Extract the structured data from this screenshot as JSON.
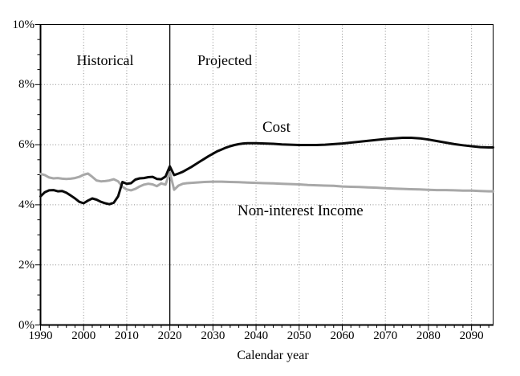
{
  "chart_data": {
    "type": "line",
    "title": "",
    "xlabel": "Calendar year",
    "ylabel": "",
    "x_range": [
      1990,
      2095
    ],
    "y_range": [
      0,
      10
    ],
    "grid": {
      "style": "dotted",
      "color": "#8f8f8f",
      "horizontal_values": [
        2,
        4,
        6,
        8
      ],
      "vertical_values": [
        2000,
        2010,
        2030,
        2040,
        2050,
        2060,
        2070,
        2080,
        2090
      ]
    },
    "divider": {
      "x": 2020,
      "color": "#000000"
    },
    "x_ticks": {
      "values": [
        1990,
        2000,
        2010,
        2020,
        2030,
        2040,
        2050,
        2060,
        2070,
        2080,
        2090
      ],
      "labels": [
        "1990",
        "2000",
        "2010",
        "2020",
        "2030",
        "2040",
        "2050",
        "2060",
        "2070",
        "2080",
        "2090"
      ],
      "minor_step": 2
    },
    "y_ticks": {
      "values": [
        0,
        2,
        4,
        6,
        8,
        10
      ],
      "labels": [
        "0%",
        "2%",
        "4%",
        "6%",
        "8%",
        "10%"
      ],
      "minor_step": 0.5
    },
    "annotations": {
      "historical": "Historical",
      "projected": "Projected",
      "cost": "Cost",
      "income": "Non-interest Income"
    },
    "series": [
      {
        "name": "Non-interest Income",
        "color": "#a8a8a8",
        "width": 3,
        "points": [
          [
            1990,
            5.03
          ],
          [
            1991,
            4.99
          ],
          [
            1992,
            4.91
          ],
          [
            1993,
            4.88
          ],
          [
            1994,
            4.89
          ],
          [
            1995,
            4.87
          ],
          [
            1996,
            4.86
          ],
          [
            1997,
            4.87
          ],
          [
            1998,
            4.89
          ],
          [
            1999,
            4.93
          ],
          [
            2000,
            5.0
          ],
          [
            2001,
            5.04
          ],
          [
            2002,
            4.93
          ],
          [
            2003,
            4.81
          ],
          [
            2004,
            4.78
          ],
          [
            2005,
            4.79
          ],
          [
            2006,
            4.81
          ],
          [
            2007,
            4.85
          ],
          [
            2008,
            4.78
          ],
          [
            2009,
            4.6
          ],
          [
            2010,
            4.51
          ],
          [
            2011,
            4.48
          ],
          [
            2012,
            4.53
          ],
          [
            2013,
            4.61
          ],
          [
            2014,
            4.67
          ],
          [
            2015,
            4.7
          ],
          [
            2016,
            4.68
          ],
          [
            2017,
            4.62
          ],
          [
            2018,
            4.71
          ],
          [
            2019,
            4.67
          ],
          [
            2020,
            5.08
          ],
          [
            2021,
            4.5
          ],
          [
            2022,
            4.64
          ],
          [
            2023,
            4.7
          ],
          [
            2024,
            4.72
          ],
          [
            2026,
            4.74
          ],
          [
            2028,
            4.76
          ],
          [
            2030,
            4.77
          ],
          [
            2032,
            4.77
          ],
          [
            2034,
            4.76
          ],
          [
            2036,
            4.75
          ],
          [
            2038,
            4.74
          ],
          [
            2040,
            4.73
          ],
          [
            2042,
            4.72
          ],
          [
            2044,
            4.71
          ],
          [
            2046,
            4.7
          ],
          [
            2048,
            4.69
          ],
          [
            2050,
            4.68
          ],
          [
            2052,
            4.66
          ],
          [
            2054,
            4.65
          ],
          [
            2056,
            4.64
          ],
          [
            2058,
            4.63
          ],
          [
            2060,
            4.61
          ],
          [
            2062,
            4.6
          ],
          [
            2064,
            4.59
          ],
          [
            2066,
            4.58
          ],
          [
            2068,
            4.57
          ],
          [
            2070,
            4.55
          ],
          [
            2072,
            4.54
          ],
          [
            2074,
            4.53
          ],
          [
            2076,
            4.52
          ],
          [
            2078,
            4.51
          ],
          [
            2080,
            4.5
          ],
          [
            2082,
            4.49
          ],
          [
            2084,
            4.49
          ],
          [
            2086,
            4.48
          ],
          [
            2088,
            4.47
          ],
          [
            2090,
            4.47
          ],
          [
            2092,
            4.46
          ],
          [
            2094,
            4.45
          ],
          [
            2095,
            4.45
          ]
        ]
      },
      {
        "name": "Cost",
        "color": "#0a0a0a",
        "width": 3,
        "points": [
          [
            1990,
            4.28
          ],
          [
            1991,
            4.42
          ],
          [
            1992,
            4.48
          ],
          [
            1993,
            4.49
          ],
          [
            1994,
            4.45
          ],
          [
            1995,
            4.46
          ],
          [
            1996,
            4.4
          ],
          [
            1997,
            4.31
          ],
          [
            1998,
            4.21
          ],
          [
            1999,
            4.1
          ],
          [
            2000,
            4.05
          ],
          [
            2001,
            4.14
          ],
          [
            2002,
            4.21
          ],
          [
            2003,
            4.17
          ],
          [
            2004,
            4.1
          ],
          [
            2005,
            4.05
          ],
          [
            2006,
            4.02
          ],
          [
            2007,
            4.07
          ],
          [
            2008,
            4.28
          ],
          [
            2009,
            4.76
          ],
          [
            2010,
            4.7
          ],
          [
            2011,
            4.72
          ],
          [
            2012,
            4.84
          ],
          [
            2013,
            4.88
          ],
          [
            2014,
            4.89
          ],
          [
            2015,
            4.92
          ],
          [
            2016,
            4.93
          ],
          [
            2017,
            4.86
          ],
          [
            2018,
            4.85
          ],
          [
            2019,
            4.94
          ],
          [
            2020,
            5.28
          ],
          [
            2021,
            4.99
          ],
          [
            2022,
            5.04
          ],
          [
            2023,
            5.1
          ],
          [
            2024,
            5.18
          ],
          [
            2025,
            5.26
          ],
          [
            2026,
            5.35
          ],
          [
            2027,
            5.44
          ],
          [
            2028,
            5.53
          ],
          [
            2029,
            5.62
          ],
          [
            2030,
            5.7
          ],
          [
            2031,
            5.78
          ],
          [
            2032,
            5.84
          ],
          [
            2033,
            5.9
          ],
          [
            2034,
            5.95
          ],
          [
            2035,
            5.99
          ],
          [
            2036,
            6.02
          ],
          [
            2037,
            6.04
          ],
          [
            2038,
            6.05
          ],
          [
            2040,
            6.05
          ],
          [
            2042,
            6.04
          ],
          [
            2044,
            6.03
          ],
          [
            2046,
            6.01
          ],
          [
            2048,
            6.0
          ],
          [
            2050,
            5.99
          ],
          [
            2052,
            5.99
          ],
          [
            2054,
            5.99
          ],
          [
            2056,
            6.0
          ],
          [
            2058,
            6.02
          ],
          [
            2060,
            6.04
          ],
          [
            2062,
            6.07
          ],
          [
            2064,
            6.1
          ],
          [
            2066,
            6.13
          ],
          [
            2068,
            6.16
          ],
          [
            2070,
            6.19
          ],
          [
            2072,
            6.21
          ],
          [
            2074,
            6.23
          ],
          [
            2076,
            6.23
          ],
          [
            2078,
            6.21
          ],
          [
            2080,
            6.17
          ],
          [
            2082,
            6.12
          ],
          [
            2084,
            6.07
          ],
          [
            2086,
            6.02
          ],
          [
            2088,
            5.98
          ],
          [
            2090,
            5.95
          ],
          [
            2092,
            5.92
          ],
          [
            2094,
            5.91
          ],
          [
            2095,
            5.91
          ]
        ]
      }
    ]
  }
}
